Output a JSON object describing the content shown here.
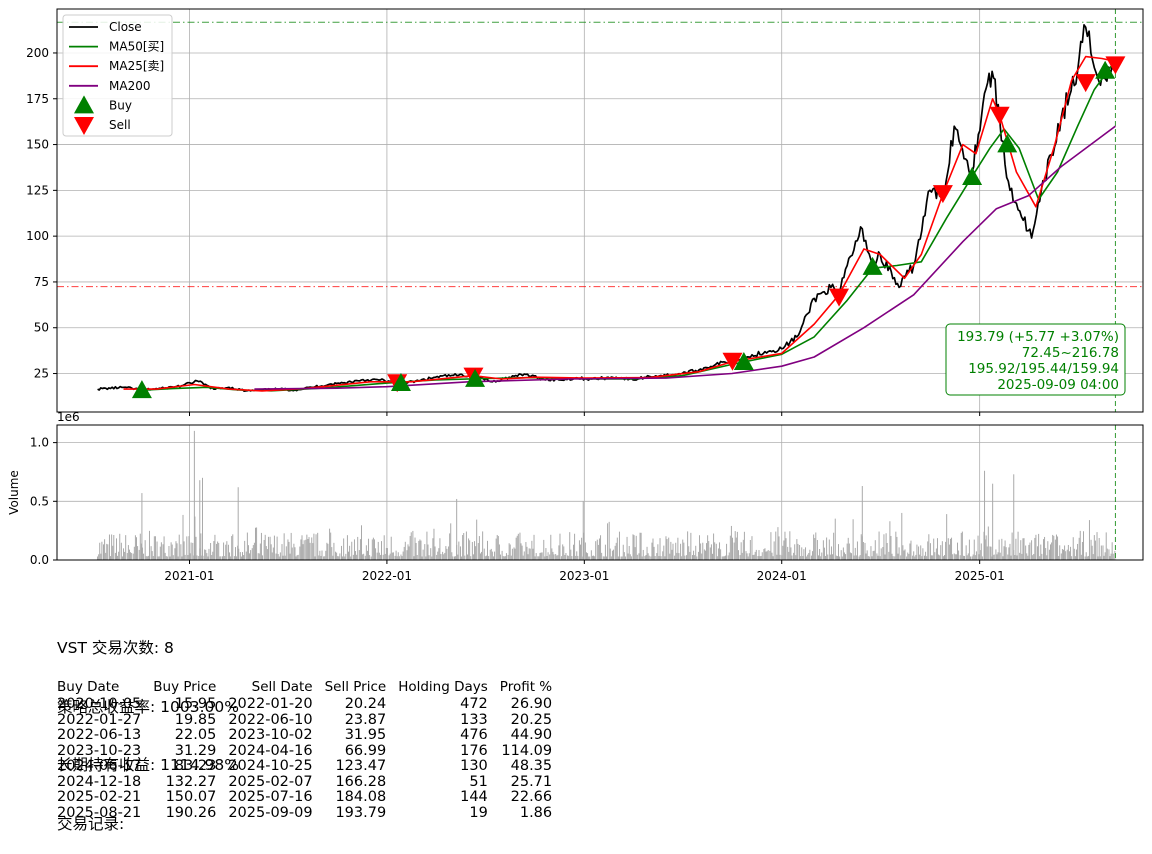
{
  "chart_data": {
    "type": "line",
    "ticker": "VST",
    "price_panel": {
      "ylim": [
        4,
        224
      ],
      "yticks": [
        25,
        50,
        75,
        100,
        125,
        150,
        175,
        200
      ],
      "grid": true,
      "legend_position": "top-left",
      "legend": [
        {
          "label": "Close",
          "color": "#000000",
          "kind": "line"
        },
        {
          "label": "MA50[买]",
          "color": "#008000",
          "kind": "line"
        },
        {
          "label": "MA25[卖]",
          "color": "#ff0000",
          "kind": "line"
        },
        {
          "label": "MA200",
          "color": "#800080",
          "kind": "line"
        },
        {
          "label": "Buy",
          "color": "#008000",
          "kind": "triangle-up"
        },
        {
          "label": "Sell",
          "color": "#ff0000",
          "kind": "triangle-down"
        }
      ],
      "hlines": [
        {
          "value": 216.78,
          "color": "#008000",
          "style": "dashdot"
        },
        {
          "value": 72.45,
          "color": "#ff0000",
          "style": "dashdot"
        }
      ],
      "vline": {
        "date": "2025-09-09",
        "color": "#008000",
        "style": "dashed"
      },
      "info_box": [
        "193.79 (+5.77 +3.07%)",
        "72.45~216.78",
        "195.92/195.44/159.94",
        "2025-09-09 04:00"
      ],
      "series": [
        {
          "name": "Close",
          "color": "#000000",
          "points": [
            [
              "2020-07-15",
              16.5
            ],
            [
              "2020-09-01",
              17.5
            ],
            [
              "2020-10-05",
              16.0
            ],
            [
              "2020-11-15",
              17.0
            ],
            [
              "2020-12-20",
              18.5
            ],
            [
              "2021-01-15",
              21.0
            ],
            [
              "2021-02-15",
              16.5
            ],
            [
              "2021-03-15",
              17.5
            ],
            [
              "2021-04-15",
              15.5
            ],
            [
              "2021-05-15",
              16.0
            ],
            [
              "2021-06-15",
              16.5
            ],
            [
              "2021-07-15",
              16.0
            ],
            [
              "2021-08-15",
              17.5
            ],
            [
              "2021-09-15",
              19.0
            ],
            [
              "2021-10-15",
              20.0
            ],
            [
              "2021-11-15",
              21.5
            ],
            [
              "2021-12-20",
              21.5
            ],
            [
              "2022-01-27",
              19.5
            ],
            [
              "2022-03-01",
              21.0
            ],
            [
              "2022-04-01",
              23.0
            ],
            [
              "2022-05-01",
              24.0
            ],
            [
              "2022-06-10",
              24.0
            ],
            [
              "2022-07-15",
              20.5
            ],
            [
              "2022-08-15",
              23.0
            ],
            [
              "2022-09-15",
              24.5
            ],
            [
              "2022-10-15",
              22.0
            ],
            [
              "2022-11-15",
              21.5
            ],
            [
              "2022-12-15",
              22.5
            ],
            [
              "2023-01-15",
              22.0
            ],
            [
              "2023-03-01",
              23.0
            ],
            [
              "2023-04-01",
              21.5
            ],
            [
              "2023-05-01",
              23.5
            ],
            [
              "2023-06-01",
              24.0
            ],
            [
              "2023-07-01",
              25.0
            ],
            [
              "2023-08-01",
              27.0
            ],
            [
              "2023-09-01",
              30.0
            ],
            [
              "2023-10-01",
              32.0
            ],
            [
              "2023-11-01",
              34.0
            ],
            [
              "2023-12-01",
              37.0
            ],
            [
              "2024-01-01",
              38.5
            ],
            [
              "2024-02-01",
              46.0
            ],
            [
              "2024-03-01",
              66.0
            ],
            [
              "2024-04-01",
              72.0
            ],
            [
              "2024-04-16",
              68.0
            ],
            [
              "2024-05-01",
              84.0
            ],
            [
              "2024-05-29",
              104.0
            ],
            [
              "2024-06-17",
              84.0
            ],
            [
              "2024-07-01",
              90.0
            ],
            [
              "2024-08-05",
              72.0
            ],
            [
              "2024-09-01",
              84.0
            ],
            [
              "2024-10-01",
              125.0
            ],
            [
              "2024-10-25",
              122.0
            ],
            [
              "2024-11-15",
              160.0
            ],
            [
              "2024-12-18",
              135.0
            ],
            [
              "2025-01-10",
              178.0
            ],
            [
              "2025-01-24",
              190.0
            ],
            [
              "2025-02-07",
              164.0
            ],
            [
              "2025-02-20",
              132.0
            ],
            [
              "2025-03-10",
              118.0
            ],
            [
              "2025-04-07",
              99.0
            ],
            [
              "2025-05-01",
              130.0
            ],
            [
              "2025-06-01",
              165.0
            ],
            [
              "2025-07-01",
              190.0
            ],
            [
              "2025-07-16",
              214.0
            ],
            [
              "2025-08-01",
              192.0
            ],
            [
              "2025-08-21",
              186.0
            ],
            [
              "2025-09-09",
              193.8
            ]
          ]
        },
        {
          "name": "MA50[买]",
          "color": "#008000",
          "points": [
            [
              "2020-10-05",
              15.9
            ],
            [
              "2020-12-01",
              16.8
            ],
            [
              "2021-02-01",
              17.5
            ],
            [
              "2021-04-01",
              16.0
            ],
            [
              "2021-06-01",
              15.6
            ],
            [
              "2021-09-01",
              17.0
            ],
            [
              "2022-01-01",
              19.8
            ],
            [
              "2022-04-01",
              21.5
            ],
            [
              "2022-07-01",
              22.3
            ],
            [
              "2022-10-01",
              22.8
            ],
            [
              "2023-01-01",
              22.0
            ],
            [
              "2023-04-01",
              22.0
            ],
            [
              "2023-07-01",
              23.8
            ],
            [
              "2023-10-01",
              30.0
            ],
            [
              "2024-01-01",
              35.5
            ],
            [
              "2024-03-01",
              45.0
            ],
            [
              "2024-05-01",
              65.0
            ],
            [
              "2024-06-17",
              82.5
            ],
            [
              "2024-08-01",
              84.0
            ],
            [
              "2024-09-15",
              86.0
            ],
            [
              "2024-11-01",
              110.0
            ],
            [
              "2024-12-18",
              132.5
            ],
            [
              "2025-01-20",
              148.0
            ],
            [
              "2025-02-15",
              158.5
            ],
            [
              "2025-03-15",
              148.0
            ],
            [
              "2025-04-20",
              120.0
            ],
            [
              "2025-05-25",
              135.0
            ],
            [
              "2025-07-01",
              160.0
            ],
            [
              "2025-08-01",
              180.0
            ],
            [
              "2025-09-09",
              196.0
            ]
          ]
        },
        {
          "name": "MA25[卖]",
          "color": "#ff0000",
          "points": [
            [
              "2020-09-01",
              16.5
            ],
            [
              "2020-11-01",
              16.5
            ],
            [
              "2021-01-10",
              19.0
            ],
            [
              "2021-03-15",
              16.5
            ],
            [
              "2021-05-15",
              15.5
            ],
            [
              "2021-08-01",
              16.8
            ],
            [
              "2021-12-01",
              20.5
            ],
            [
              "2022-02-15",
              20.5
            ],
            [
              "2022-06-10",
              23.8
            ],
            [
              "2022-08-01",
              22.0
            ],
            [
              "2022-10-01",
              23.0
            ],
            [
              "2023-01-01",
              22.5
            ],
            [
              "2023-05-01",
              22.8
            ],
            [
              "2023-08-01",
              26.0
            ],
            [
              "2023-10-02",
              31.5
            ],
            [
              "2024-01-01",
              36.0
            ],
            [
              "2024-03-01",
              52.0
            ],
            [
              "2024-04-16",
              68.0
            ],
            [
              "2024-06-01",
              93.0
            ],
            [
              "2024-07-01",
              90.0
            ],
            [
              "2024-08-15",
              77.0
            ],
            [
              "2024-09-15",
              90.0
            ],
            [
              "2024-10-25",
              123.0
            ],
            [
              "2024-12-01",
              150.0
            ],
            [
              "2024-12-25",
              145.0
            ],
            [
              "2025-01-25",
              175.0
            ],
            [
              "2025-02-07",
              166.0
            ],
            [
              "2025-03-10",
              135.0
            ],
            [
              "2025-04-15",
              116.0
            ],
            [
              "2025-05-20",
              150.0
            ],
            [
              "2025-06-20",
              185.0
            ],
            [
              "2025-07-16",
              198.0
            ],
            [
              "2025-08-15",
              197.0
            ],
            [
              "2025-09-09",
              195.4
            ]
          ]
        },
        {
          "name": "MA200",
          "color": "#800080",
          "points": [
            [
              "2021-05-01",
              16.5
            ],
            [
              "2021-10-01",
              17.0
            ],
            [
              "2022-01-01",
              17.8
            ],
            [
              "2022-06-01",
              20.5
            ],
            [
              "2022-12-01",
              22.0
            ],
            [
              "2023-06-01",
              22.5
            ],
            [
              "2023-10-01",
              25.0
            ],
            [
              "2024-01-01",
              29.0
            ],
            [
              "2024-03-01",
              34.0
            ],
            [
              "2024-06-01",
              50.0
            ],
            [
              "2024-09-01",
              68.0
            ],
            [
              "2024-12-01",
              97.0
            ],
            [
              "2025-02-01",
              115.0
            ],
            [
              "2025-04-01",
              122.0
            ],
            [
              "2025-06-01",
              138.0
            ],
            [
              "2025-09-09",
              160.0
            ]
          ]
        }
      ]
    },
    "volume_panel": {
      "ylabel": "Volume",
      "offset_text": "1e6",
      "ylim": [
        0,
        1.15
      ],
      "yticks": [
        "0.0",
        "0.5",
        "1.0"
      ],
      "grid": true,
      "bar_color": "#a9a9a9",
      "spikes": [
        [
          "2020-10-05",
          0.57
        ],
        [
          "2021-01-10",
          1.1
        ],
        [
          "2021-01-20",
          0.68
        ],
        [
          "2021-01-25",
          0.7
        ],
        [
          "2021-04-01",
          0.62
        ],
        [
          "2022-05-10",
          0.52
        ],
        [
          "2022-12-30",
          0.5
        ],
        [
          "2024-05-29",
          0.63
        ],
        [
          "2025-01-10",
          0.76
        ],
        [
          "2025-03-05",
          0.73
        ],
        [
          "2025-01-25",
          0.65
        ]
      ]
    },
    "xaxis": {
      "range": [
        "2020-05-01",
        "2025-10-30"
      ],
      "ticks": [
        "2021-01",
        "2022-01",
        "2023-01",
        "2024-01",
        "2025-01"
      ]
    },
    "trades": [
      {
        "buy_date": "2020-10-05",
        "buy_price": 15.95,
        "sell_date": "2022-01-20",
        "sell_price": 20.24,
        "days": 472,
        "profit": 26.9
      },
      {
        "buy_date": "2022-01-27",
        "buy_price": 19.85,
        "sell_date": "2022-06-10",
        "sell_price": 23.87,
        "days": 133,
        "profit": 20.25
      },
      {
        "buy_date": "2022-06-13",
        "buy_price": 22.05,
        "sell_date": "2023-10-02",
        "sell_price": 31.95,
        "days": 476,
        "profit": 44.9
      },
      {
        "buy_date": "2023-10-23",
        "buy_price": 31.29,
        "sell_date": "2024-04-16",
        "sell_price": 66.99,
        "days": 176,
        "profit": 114.09
      },
      {
        "buy_date": "2024-06-17",
        "buy_price": 83.23,
        "sell_date": "2024-10-25",
        "sell_price": 123.47,
        "days": 130,
        "profit": 48.35
      },
      {
        "buy_date": "2024-12-18",
        "buy_price": 132.27,
        "sell_date": "2025-02-07",
        "sell_price": 166.28,
        "days": 51,
        "profit": 25.71
      },
      {
        "buy_date": "2025-02-21",
        "buy_price": 150.07,
        "sell_date": "2025-07-16",
        "sell_price": 184.08,
        "days": 144,
        "profit": 22.66
      },
      {
        "buy_date": "2025-08-21",
        "buy_price": 190.26,
        "sell_date": "2025-09-09",
        "sell_price": 193.79,
        "days": 19,
        "profit": 1.86
      }
    ]
  },
  "summary": {
    "trade_count": "VST 交易次数: 8",
    "strategy_return": "策略总收益率: 1003.00%",
    "buy_hold_return": "长期持有收益: 1114.98%",
    "records_title": "交易记录:"
  },
  "table": {
    "headers": [
      "Buy Date",
      "Buy Price",
      "Sell Date",
      "Sell Price",
      "Holding Days",
      "Profit %"
    ],
    "rows": [
      [
        "2020-10-05",
        "15.95",
        "2022-01-20",
        "20.24",
        "472",
        "26.90"
      ],
      [
        "2022-01-27",
        "19.85",
        "2022-06-10",
        "23.87",
        "133",
        "20.25"
      ],
      [
        "2022-06-13",
        "22.05",
        "2023-10-02",
        "31.95",
        "476",
        "44.90"
      ],
      [
        "2023-10-23",
        "31.29",
        "2024-04-16",
        "66.99",
        "176",
        "114.09"
      ],
      [
        "2024-06-17",
        "83.23",
        "2024-10-25",
        "123.47",
        "130",
        "48.35"
      ],
      [
        "2024-12-18",
        "132.27",
        "2025-02-07",
        "166.28",
        "51",
        "25.71"
      ],
      [
        "2025-02-21",
        "150.07",
        "2025-07-16",
        "184.08",
        "144",
        "22.66"
      ],
      [
        "2025-08-21",
        "190.26",
        "2025-09-09",
        "193.79",
        "19",
        "1.86"
      ]
    ]
  }
}
